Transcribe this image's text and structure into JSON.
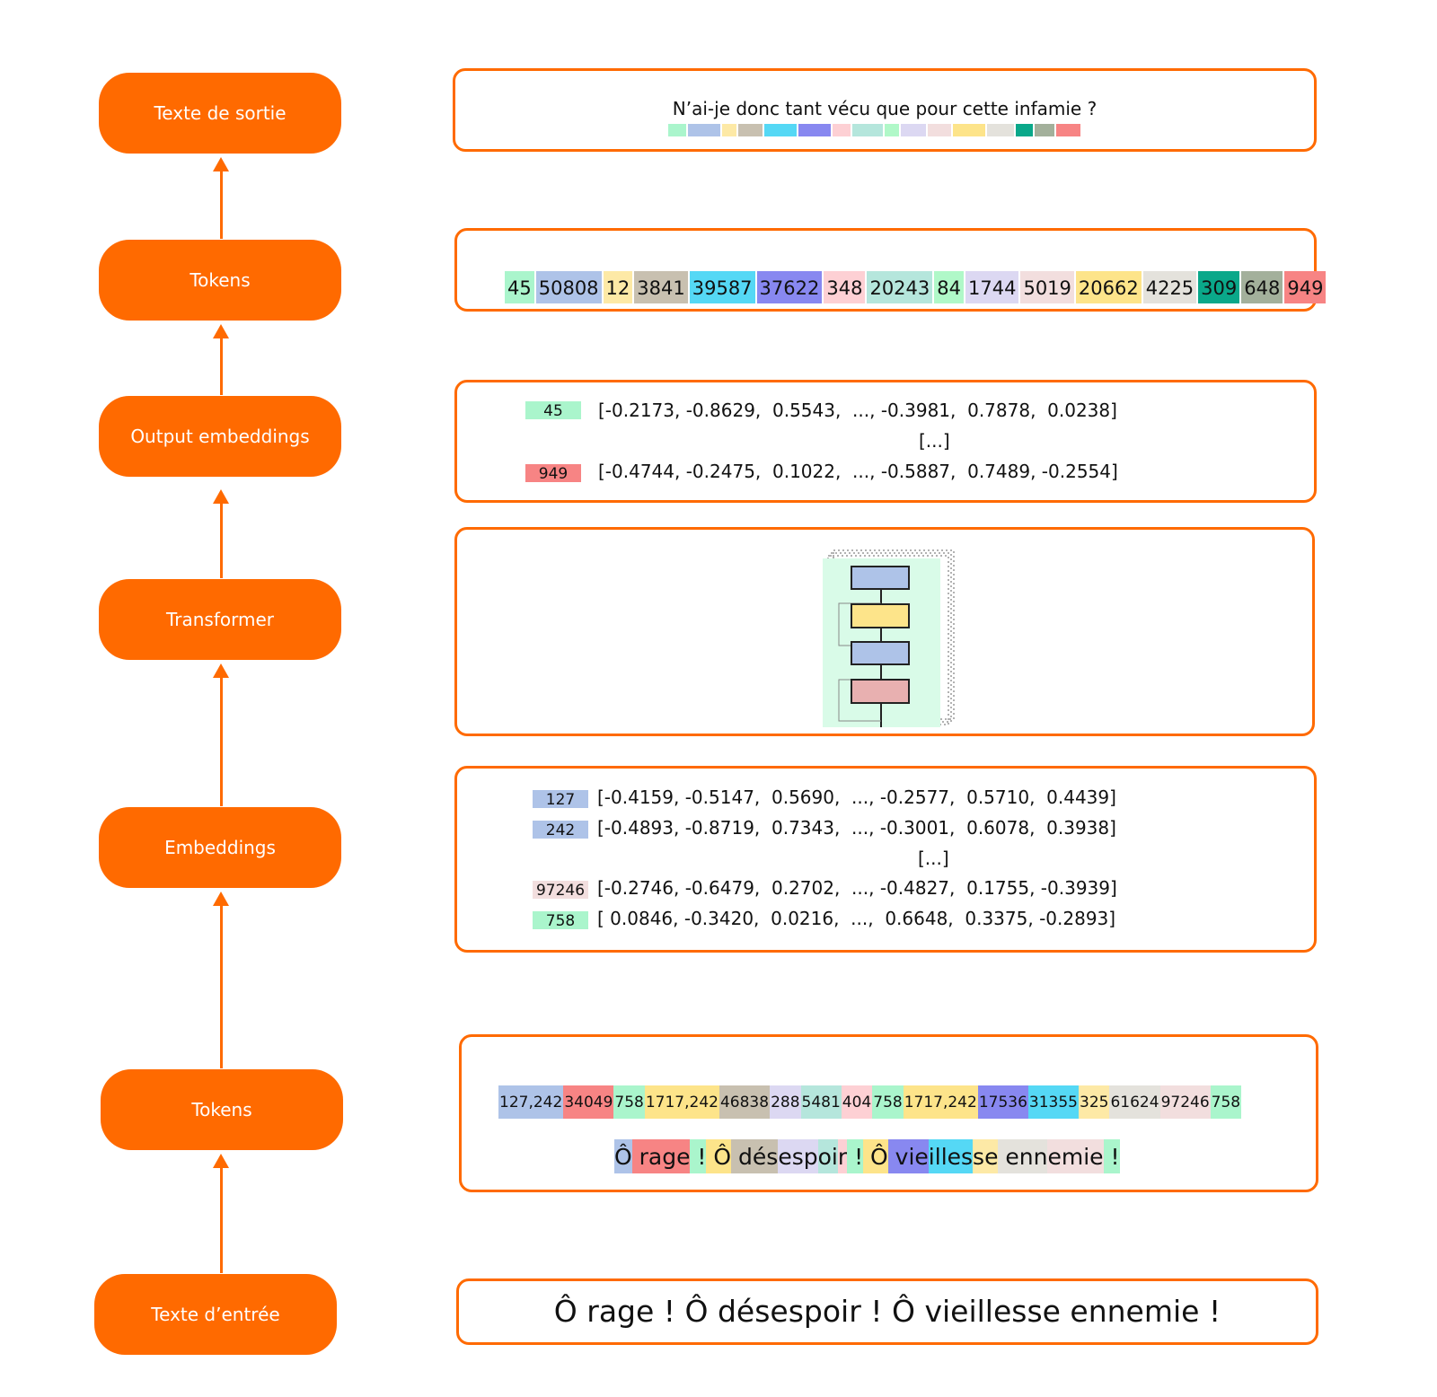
{
  "stages": {
    "output_text": "Texte de sortie",
    "output_tokens": "Tokens",
    "output_embeddings": "Output embeddings",
    "transformer": "Transformer",
    "embeddings": "Embeddings",
    "input_tokens": "Tokens",
    "input_text": "Texte d’entrée"
  },
  "output_text": {
    "sentence": "N’ai-je donc tant vécu que pour cette infamie ?",
    "colors": [
      "#aaf5cc",
      "#aec3e8",
      "#fde9a6",
      "#c8c0b0",
      "#55d8f5",
      "#8888f0",
      "#fdd0d4",
      "#b5e6dc",
      "#b0f8c8",
      "#dcd8f2",
      "#f2dede",
      "#fde48a",
      "#e4e2dc",
      "#0aa88a",
      "#a3b09b",
      "#f78484"
    ]
  },
  "output_tokens": [
    {
      "id": "45",
      "color": "#aaf5cc"
    },
    {
      "id": "50808",
      "color": "#aec3e8"
    },
    {
      "id": "12",
      "color": "#fde9a6"
    },
    {
      "id": "3841",
      "color": "#c8c0b0"
    },
    {
      "id": "39587",
      "color": "#55d8f5"
    },
    {
      "id": "37622",
      "color": "#8888f0"
    },
    {
      "id": "348",
      "color": "#fdd0d4"
    },
    {
      "id": "20243",
      "color": "#b5e6dc"
    },
    {
      "id": "84",
      "color": "#b0f8c8"
    },
    {
      "id": "1744",
      "color": "#dcd8f2"
    },
    {
      "id": "5019",
      "color": "#f2dede"
    },
    {
      "id": "20662",
      "color": "#fde48a"
    },
    {
      "id": "4225",
      "color": "#e4e2dc"
    },
    {
      "id": "309",
      "color": "#0aa88a"
    },
    {
      "id": "648",
      "color": "#a3b09b"
    },
    {
      "id": "949",
      "color": "#f78484"
    }
  ],
  "output_embeddings": {
    "rows": [
      {
        "token": "45",
        "color": "#aaf5cc",
        "vector": "[-0.2173, -0.8629,  0.5543,  ..., -0.3981,  0.7878,  0.0238]"
      },
      {
        "token": "949",
        "color": "#f78484",
        "vector": "[-0.4744, -0.2475,  0.1022,  ..., -0.5887,  0.7489, -0.2554]"
      }
    ],
    "ellipsis": "[...]"
  },
  "embeddings": {
    "rows": [
      {
        "token": "127",
        "color": "#aec3e8",
        "vector": "[-0.4159, -0.5147,  0.5690,  ..., -0.2577,  0.5710,  0.4439]"
      },
      {
        "token": "242",
        "color": "#aec3e8",
        "vector": "[-0.4893, -0.8719,  0.7343,  ..., -0.3001,  0.6078,  0.3938]"
      },
      {
        "token": "97246",
        "color": "#f2dede",
        "vector": "[-0.2746, -0.6479,  0.2702,  ..., -0.4827,  0.1755, -0.3939]"
      },
      {
        "token": "758",
        "color": "#aaf5cc",
        "vector": "[ 0.0846, -0.3420,  0.0216,  ...,  0.6648,  0.3375, -0.2893]"
      }
    ],
    "ellipsis": "[...]"
  },
  "input_tokens": {
    "ids": [
      {
        "id": "127,242",
        "color": "#aec3e8"
      },
      {
        "id": "34049",
        "color": "#f78484"
      },
      {
        "id": "758",
        "color": "#aaf5cc"
      },
      {
        "id": "1717,242",
        "color": "#fde48a"
      },
      {
        "id": "46838",
        "color": "#c8c0b0"
      },
      {
        "id": "288",
        "color": "#dcd8f2"
      },
      {
        "id": "5481",
        "color": "#b5e6dc"
      },
      {
        "id": "404",
        "color": "#fdd0d4"
      },
      {
        "id": "758",
        "color": "#aaf5cc"
      },
      {
        "id": "1717,242",
        "color": "#fde48a"
      },
      {
        "id": "17536",
        "color": "#8888f0"
      },
      {
        "id": "31355",
        "color": "#55d8f5"
      },
      {
        "id": "325",
        "color": "#fde9a6"
      },
      {
        "id": "61624",
        "color": "#e4e2dc"
      },
      {
        "id": "97246",
        "color": "#f2dede"
      },
      {
        "id": "758",
        "color": "#aaf5cc"
      }
    ],
    "pieces": [
      {
        "text": "Ô",
        "color": "#aec3e8"
      },
      {
        "text": " rage",
        "color": "#f78484"
      },
      {
        "text": " !",
        "color": "#aaf5cc"
      },
      {
        "text": " Ô",
        "color": "#fde48a"
      },
      {
        "text": " dés",
        "color": "#c8c0b0"
      },
      {
        "text": "esp",
        "color": "#dcd8f2"
      },
      {
        "text": "oi",
        "color": "#b5e6dc"
      },
      {
        "text": "r",
        "color": "#fdd0d4"
      },
      {
        "text": " !",
        "color": "#aaf5cc"
      },
      {
        "text": " Ô",
        "color": "#fde48a"
      },
      {
        "text": " vie",
        "color": "#8888f0"
      },
      {
        "text": "illes",
        "color": "#55d8f5"
      },
      {
        "text": "se",
        "color": "#fde9a6"
      },
      {
        "text": " enn",
        "color": "#e4e2dc"
      },
      {
        "text": "emie",
        "color": "#f2dede"
      },
      {
        "text": " !",
        "color": "#aaf5cc"
      }
    ]
  },
  "input_text": "Ô rage ! Ô désespoir ! Ô vieillesse ennemie !",
  "colors": {
    "accent": "#ff6a00",
    "transformer_bg": "#d9fbe8",
    "block_blue": "#aec3e8",
    "block_yellow": "#fde48a",
    "block_pink": "#e8b0b0"
  }
}
